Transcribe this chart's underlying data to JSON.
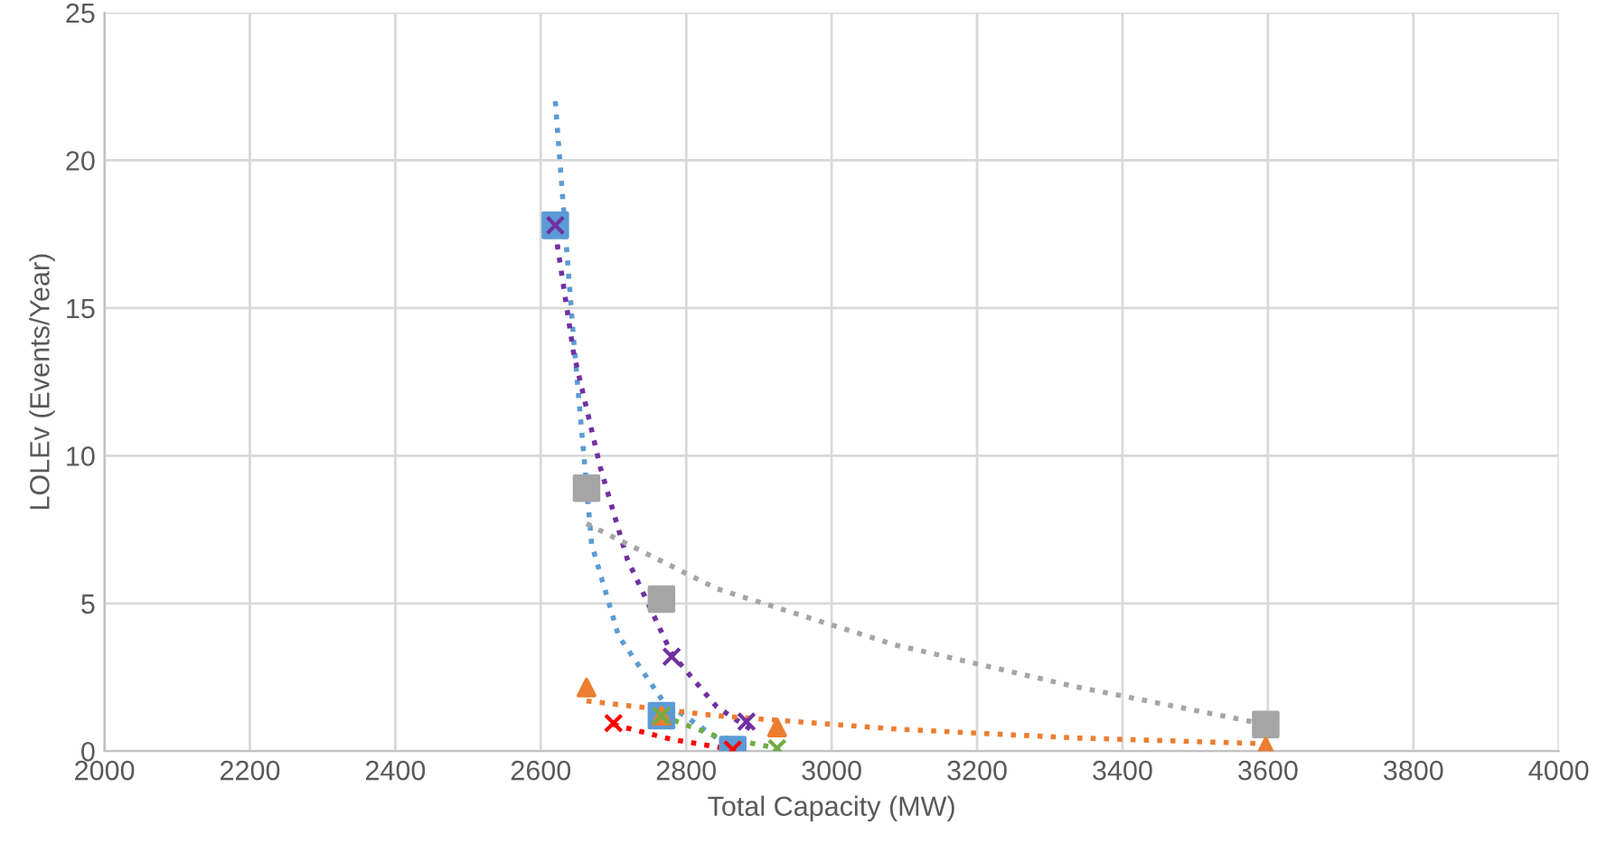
{
  "chart_data": {
    "type": "scatter",
    "xlabel": "Total Capacity (MW)",
    "ylabel": "LOLEv (Events/Year)",
    "xlim": [
      2000,
      4000
    ],
    "xticks": [
      2000,
      2200,
      2400,
      2600,
      2800,
      3000,
      3200,
      3400,
      3600,
      3800,
      4000
    ],
    "ylim": [
      0,
      25
    ],
    "yticks": [
      0,
      5,
      10,
      15,
      20,
      25
    ],
    "grid": true,
    "series": [
      {
        "marker": "square",
        "color": "#5b9bd5",
        "x": [
          2620,
          2766,
          2864
        ],
        "values": [
          17.8,
          1.2,
          0.05
        ]
      },
      {
        "marker": "square",
        "color": "#a5a5a5",
        "x": [
          2663,
          2766,
          3597
        ],
        "values": [
          8.9,
          5.15,
          0.9
        ]
      },
      {
        "marker": "triangle",
        "color": "#ed7d31",
        "x": [
          2663,
          2766,
          2925,
          3597
        ],
        "values": [
          2.15,
          1.2,
          0.8,
          0.15
        ]
      },
      {
        "marker": "cross",
        "color": "#70ad47",
        "x": [
          2766,
          2925
        ],
        "values": [
          1.2,
          0.1
        ]
      },
      {
        "marker": "cross",
        "color": "#7030a0",
        "x": [
          2620,
          2780,
          2883
        ],
        "values": [
          17.8,
          3.2,
          1.0
        ]
      },
      {
        "marker": "cross",
        "color": "#ff0000",
        "x": [
          2700,
          2864
        ],
        "values": [
          0.95,
          0.05
        ]
      },
      {
        "type": "line",
        "line_style": "dotted",
        "color": "#5b9bd5",
        "x": [
          2620,
          2645,
          2670,
          2707,
          2768,
          2842,
          2866
        ],
        "values": [
          22,
          14,
          7,
          3.9,
          1.7,
          0.45,
          0.05
        ]
      },
      {
        "type": "line",
        "line_style": "dotted",
        "color": "#7030a0",
        "x": [
          2620,
          2645,
          2682,
          2719,
          2780,
          2842,
          2891
        ],
        "values": [
          17.6,
          13.5,
          9.6,
          6.5,
          3.3,
          1.5,
          0.7
        ]
      },
      {
        "type": "line",
        "line_style": "dotted",
        "color": "#a5a5a5",
        "x": [
          2663,
          2842,
          3087,
          3332,
          3598
        ],
        "values": [
          7.7,
          5.5,
          3.6,
          2.2,
          0.9
        ]
      },
      {
        "type": "line",
        "line_style": "dotted",
        "color": "#ed7d31",
        "x": [
          2663,
          2842,
          3087,
          3332,
          3598
        ],
        "values": [
          1.7,
          1.2,
          0.75,
          0.45,
          0.25
        ]
      },
      {
        "type": "line",
        "line_style": "dotted",
        "color": "#ff0000",
        "x": [
          2700,
          2780,
          2864
        ],
        "values": [
          0.9,
          0.4,
          0.05
        ]
      },
      {
        "type": "line",
        "line_style": "dotted",
        "color": "#70ad47",
        "x": [
          2766,
          2842,
          2925
        ],
        "values": [
          1.2,
          0.5,
          0.1
        ]
      }
    ]
  }
}
